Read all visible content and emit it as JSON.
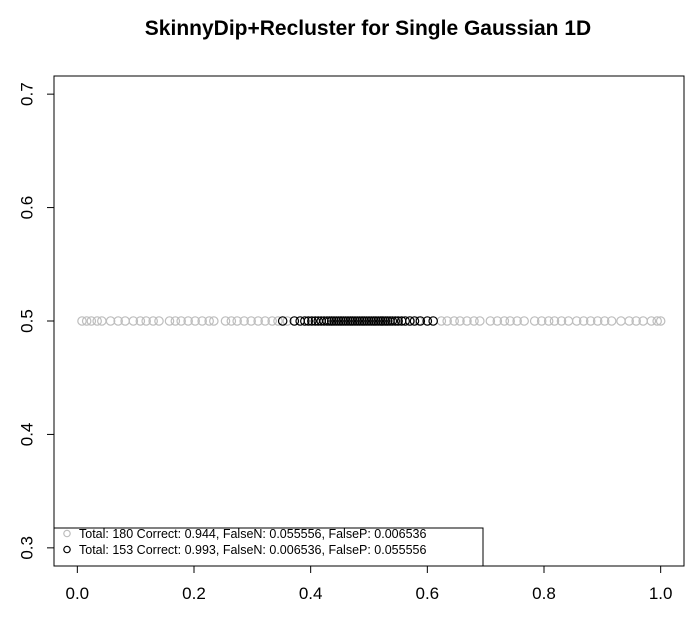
{
  "chart_data": {
    "type": "scatter",
    "title": "SkinnyDip+Recluster for Single Gaussian 1D",
    "xlabel": "",
    "ylabel": "",
    "xlim": [
      -0.04,
      1.04
    ],
    "ylim": [
      0.284,
      0.716
    ],
    "x_ticks": [
      0.0,
      0.2,
      0.4,
      0.6,
      0.8,
      1.0
    ],
    "x_tick_labels": [
      "0.0",
      "0.2",
      "0.4",
      "0.6",
      "0.8",
      "1.0"
    ],
    "y_ticks": [
      0.3,
      0.4,
      0.5,
      0.6,
      0.7
    ],
    "y_tick_labels": [
      "0.3",
      "0.4",
      "0.5",
      "0.6",
      "0.7"
    ],
    "grid": false,
    "legend_position": "bottom-left",
    "series": [
      {
        "name": "Total: 180 Correct: 0.944, FalseN: 0.055556, FalseP: 0.006536",
        "color": "#bdbdbd",
        "marker": "open-circle",
        "x": [
          0.008,
          0.016,
          0.024,
          0.034,
          0.042,
          0.057,
          0.07,
          0.082,
          0.096,
          0.108,
          0.118,
          0.13,
          0.14,
          0.158,
          0.168,
          0.178,
          0.19,
          0.202,
          0.214,
          0.226,
          0.234,
          0.254,
          0.264,
          0.274,
          0.286,
          0.298,
          0.31,
          0.322,
          0.334,
          0.344,
          0.36,
          0.436,
          0.452,
          0.47,
          0.49,
          0.51,
          0.53,
          0.548,
          0.57,
          0.585,
          0.624,
          0.634,
          0.646,
          0.656,
          0.668,
          0.68,
          0.69,
          0.708,
          0.72,
          0.732,
          0.742,
          0.754,
          0.766,
          0.784,
          0.796,
          0.808,
          0.818,
          0.83,
          0.842,
          0.856,
          0.868,
          0.88,
          0.892,
          0.904,
          0.916,
          0.932,
          0.946,
          0.958,
          0.97,
          0.984,
          0.994,
          1.0
        ],
        "y": [
          0.5,
          0.5,
          0.5,
          0.5,
          0.5,
          0.5,
          0.5,
          0.5,
          0.5,
          0.5,
          0.5,
          0.5,
          0.5,
          0.5,
          0.5,
          0.5,
          0.5,
          0.5,
          0.5,
          0.5,
          0.5,
          0.5,
          0.5,
          0.5,
          0.5,
          0.5,
          0.5,
          0.5,
          0.5,
          0.5,
          0.5,
          0.5,
          0.5,
          0.5,
          0.5,
          0.5,
          0.5,
          0.5,
          0.5,
          0.5,
          0.5,
          0.5,
          0.5,
          0.5,
          0.5,
          0.5,
          0.5,
          0.5,
          0.5,
          0.5,
          0.5,
          0.5,
          0.5,
          0.5,
          0.5,
          0.5,
          0.5,
          0.5,
          0.5,
          0.5,
          0.5,
          0.5,
          0.5,
          0.5,
          0.5,
          0.5,
          0.5,
          0.5,
          0.5,
          0.5,
          0.5,
          0.5
        ]
      },
      {
        "name": "Total: 153 Correct: 0.993, FalseN: 0.006536, FalseP: 0.055556",
        "color": "#000000",
        "marker": "open-circle",
        "x": [
          0.352,
          0.372,
          0.382,
          0.39,
          0.396,
          0.402,
          0.408,
          0.413,
          0.418,
          0.423,
          0.428,
          0.432,
          0.436,
          0.44,
          0.444,
          0.448,
          0.452,
          0.456,
          0.46,
          0.464,
          0.468,
          0.472,
          0.476,
          0.48,
          0.484,
          0.488,
          0.492,
          0.496,
          0.5,
          0.504,
          0.508,
          0.512,
          0.516,
          0.52,
          0.524,
          0.528,
          0.532,
          0.536,
          0.54,
          0.545,
          0.55,
          0.556,
          0.562,
          0.57,
          0.578,
          0.588,
          0.6,
          0.61
        ],
        "y": [
          0.5,
          0.5,
          0.5,
          0.5,
          0.5,
          0.5,
          0.5,
          0.5,
          0.5,
          0.5,
          0.5,
          0.5,
          0.5,
          0.5,
          0.5,
          0.5,
          0.5,
          0.5,
          0.5,
          0.5,
          0.5,
          0.5,
          0.5,
          0.5,
          0.5,
          0.5,
          0.5,
          0.5,
          0.5,
          0.5,
          0.5,
          0.5,
          0.5,
          0.5,
          0.5,
          0.5,
          0.5,
          0.5,
          0.5,
          0.5,
          0.5,
          0.5,
          0.5,
          0.5,
          0.5,
          0.5,
          0.5,
          0.5
        ]
      }
    ]
  }
}
